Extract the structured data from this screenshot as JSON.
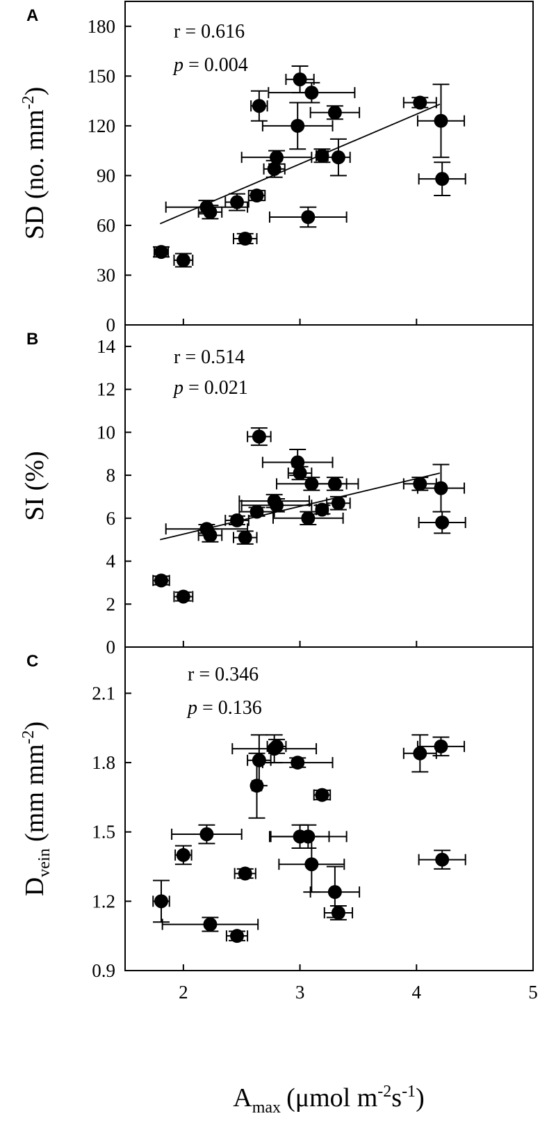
{
  "figure": {
    "xlabel": "A",
    "xlabel_sub": "max",
    "xlabel_unit": "(μmol m",
    "xlabel_unit_sup1": "-2",
    "xlabel_unit_mid": "s",
    "xlabel_unit_sup2": "-1",
    "xlabel_unit_end": ")"
  },
  "chart_data": [
    {
      "panel": "A",
      "type": "scatter",
      "title": "",
      "ylabel": "SD (no. mm",
      "ylabel_sup": "-2",
      "ylabel_end": ")",
      "stat_r": "r = 0.616",
      "stat_p_italic": "p",
      "stat_p_rest": " = 0.004",
      "xlim": [
        1.5,
        5
      ],
      "ylim": [
        0,
        195
      ],
      "xticks": [
        2,
        3,
        4,
        5
      ],
      "yticks": [
        0,
        30,
        60,
        90,
        120,
        150,
        180
      ],
      "grid": false,
      "fit_line": {
        "x": [
          1.8,
          4.2
        ],
        "y": [
          61,
          133
        ]
      },
      "points": [
        {
          "x": 1.81,
          "y": 44,
          "xerr": 0.06,
          "yerr": 3
        },
        {
          "x": 2.0,
          "y": 39,
          "xerr": 0.08,
          "yerr": 4
        },
        {
          "x": 2.2,
          "y": 71,
          "xerr": 0.35,
          "yerr": 4
        },
        {
          "x": 2.23,
          "y": 68,
          "xerr": 0.1,
          "yerr": 4
        },
        {
          "x": 2.46,
          "y": 74,
          "xerr": 0.1,
          "yerr": 5
        },
        {
          "x": 2.53,
          "y": 52,
          "xerr": 0.1,
          "yerr": 3
        },
        {
          "x": 2.63,
          "y": 78,
          "xerr": 0.07,
          "yerr": 3
        },
        {
          "x": 2.65,
          "y": 132,
          "xerr": 0.07,
          "yerr": 9
        },
        {
          "x": 2.78,
          "y": 94,
          "xerr": 0.09,
          "yerr": 5
        },
        {
          "x": 2.8,
          "y": 101,
          "xerr": 0.3,
          "yerr": 4
        },
        {
          "x": 2.98,
          "y": 120,
          "xerr": 0.3,
          "yerr": 14
        },
        {
          "x": 3.0,
          "y": 148,
          "xerr": 0.12,
          "yerr": 8
        },
        {
          "x": 3.1,
          "y": 140,
          "xerr": 0.37,
          "yerr": 6
        },
        {
          "x": 3.07,
          "y": 65,
          "xerr": 0.33,
          "yerr": 6
        },
        {
          "x": 3.19,
          "y": 102,
          "xerr": 0.05,
          "yerr": 4
        },
        {
          "x": 3.3,
          "y": 128,
          "xerr": 0.21,
          "yerr": 4
        },
        {
          "x": 3.33,
          "y": 101,
          "xerr": 0.1,
          "yerr": 11
        },
        {
          "x": 4.03,
          "y": 134,
          "xerr": 0.14,
          "yerr": 3
        },
        {
          "x": 4.21,
          "y": 123,
          "xerr": 0.2,
          "yerr": 22
        },
        {
          "x": 4.22,
          "y": 88,
          "xerr": 0.2,
          "yerr": 10
        }
      ]
    },
    {
      "panel": "B",
      "type": "scatter",
      "title": "",
      "ylabel": "SI (%)",
      "stat_r": "r = 0.514",
      "stat_p_italic": "p",
      "stat_p_rest": " = 0.021",
      "xlim": [
        1.5,
        5
      ],
      "ylim": [
        0,
        15
      ],
      "xticks": [
        2,
        3,
        4,
        5
      ],
      "yticks": [
        0,
        2,
        4,
        6,
        8,
        10,
        12,
        14
      ],
      "grid": false,
      "fit_line": {
        "x": [
          1.8,
          4.2
        ],
        "y": [
          5.0,
          8.1
        ]
      },
      "points": [
        {
          "x": 1.81,
          "y": 3.1,
          "xerr": 0.07,
          "yerr": 0.2
        },
        {
          "x": 2.0,
          "y": 2.35,
          "xerr": 0.08,
          "yerr": 0.2
        },
        {
          "x": 2.2,
          "y": 5.5,
          "xerr": 0.35,
          "yerr": 0.2
        },
        {
          "x": 2.23,
          "y": 5.2,
          "xerr": 0.1,
          "yerr": 0.3
        },
        {
          "x": 2.46,
          "y": 5.9,
          "xerr": 0.1,
          "yerr": 0.2
        },
        {
          "x": 2.53,
          "y": 5.1,
          "xerr": 0.1,
          "yerr": 0.3
        },
        {
          "x": 2.63,
          "y": 6.3,
          "xerr": 0.15,
          "yerr": 0.2
        },
        {
          "x": 2.65,
          "y": 9.8,
          "xerr": 0.1,
          "yerr": 0.4
        },
        {
          "x": 2.78,
          "y": 6.8,
          "xerr": 0.3,
          "yerr": 0.3
        },
        {
          "x": 2.8,
          "y": 6.6,
          "xerr": 0.3,
          "yerr": 0.3
        },
        {
          "x": 2.98,
          "y": 8.6,
          "xerr": 0.3,
          "yerr": 0.6
        },
        {
          "x": 3.0,
          "y": 8.1,
          "xerr": 0.1,
          "yerr": 0.3
        },
        {
          "x": 3.1,
          "y": 7.6,
          "xerr": 0.3,
          "yerr": 0.3
        },
        {
          "x": 3.07,
          "y": 6.0,
          "xerr": 0.3,
          "yerr": 0.3
        },
        {
          "x": 3.19,
          "y": 6.4,
          "xerr": 0.05,
          "yerr": 0.2
        },
        {
          "x": 3.3,
          "y": 7.6,
          "xerr": 0.2,
          "yerr": 0.3
        },
        {
          "x": 3.33,
          "y": 6.7,
          "xerr": 0.1,
          "yerr": 0.3
        },
        {
          "x": 4.03,
          "y": 7.6,
          "xerr": 0.14,
          "yerr": 0.3
        },
        {
          "x": 4.21,
          "y": 7.4,
          "xerr": 0.2,
          "yerr": 1.1
        },
        {
          "x": 4.22,
          "y": 5.8,
          "xerr": 0.2,
          "yerr": 0.5
        }
      ]
    },
    {
      "panel": "C",
      "type": "scatter",
      "title": "",
      "ylabel": "D",
      "ylabel_sub": "vein",
      "ylabel_unit": " (mm mm",
      "ylabel_sup": "-2",
      "ylabel_end": ")",
      "stat_r": "r = 0.346",
      "stat_p_italic": "p",
      "stat_p_rest": " = 0.136",
      "xlim": [
        1.5,
        5
      ],
      "ylim": [
        0.9,
        2.3
      ],
      "xticks": [
        2,
        3,
        4,
        5
      ],
      "yticks": [
        0.9,
        1.2,
        1.5,
        1.8,
        2.1
      ],
      "grid": false,
      "fit_line": null,
      "points": [
        {
          "x": 1.81,
          "y": 1.2,
          "xerr": 0.07,
          "yerr": 0.09
        },
        {
          "x": 2.0,
          "y": 1.4,
          "xerr": 0.07,
          "yerr": 0.04
        },
        {
          "x": 2.2,
          "y": 1.49,
          "xerr": 0.3,
          "yerr": 0.04
        },
        {
          "x": 2.23,
          "y": 1.1,
          "xerr": 0.41,
          "yerr": 0.03
        },
        {
          "x": 2.46,
          "y": 1.05,
          "xerr": 0.09,
          "yerr": 0.02
        },
        {
          "x": 2.53,
          "y": 1.32,
          "xerr": 0.09,
          "yerr": 0.02
        },
        {
          "x": 2.63,
          "y": 1.7,
          "xerr": 0.04,
          "yerr": 0.14
        },
        {
          "x": 2.65,
          "y": 1.81,
          "xerr": 0.1,
          "yerr": 0.11
        },
        {
          "x": 2.78,
          "y": 1.86,
          "xerr": 0.36,
          "yerr": 0.06
        },
        {
          "x": 2.8,
          "y": 1.87,
          "xerr": 0.08,
          "yerr": 0.03
        },
        {
          "x": 2.98,
          "y": 1.8,
          "xerr": 0.3,
          "yerr": 0.02
        },
        {
          "x": 3.0,
          "y": 1.48,
          "xerr": 0.25,
          "yerr": 0.05
        },
        {
          "x": 3.1,
          "y": 1.36,
          "xerr": 0.28,
          "yerr": 0.12
        },
        {
          "x": 3.07,
          "y": 1.48,
          "xerr": 0.33,
          "yerr": 0.05
        },
        {
          "x": 3.19,
          "y": 1.66,
          "xerr": 0.07,
          "yerr": 0.02
        },
        {
          "x": 3.3,
          "y": 1.24,
          "xerr": 0.21,
          "yerr": 0.11
        },
        {
          "x": 3.33,
          "y": 1.15,
          "xerr": 0.12,
          "yerr": 0.03
        },
        {
          "x": 4.03,
          "y": 1.84,
          "xerr": 0.14,
          "yerr": 0.08
        },
        {
          "x": 4.21,
          "y": 1.87,
          "xerr": 0.2,
          "yerr": 0.04
        },
        {
          "x": 4.22,
          "y": 1.38,
          "xerr": 0.2,
          "yerr": 0.04
        }
      ]
    }
  ]
}
